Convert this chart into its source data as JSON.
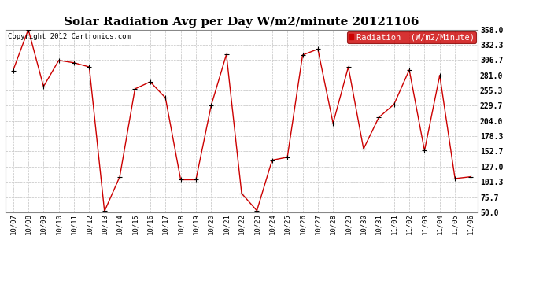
{
  "title": "Solar Radiation Avg per Day W/m2/minute 20121106",
  "copyright": "Copyright 2012 Cartronics.com",
  "legend_label": "Radiation  (W/m2/Minute)",
  "dates": [
    "10/07",
    "10/08",
    "10/09",
    "10/10",
    "10/11",
    "10/12",
    "10/13",
    "10/14",
    "10/15",
    "10/16",
    "10/17",
    "10/18",
    "10/19",
    "10/20",
    "10/21",
    "10/22",
    "10/23",
    "10/24",
    "10/25",
    "10/26",
    "10/27",
    "10/28",
    "10/29",
    "10/30",
    "10/31",
    "11/01",
    "11/02",
    "11/03",
    "11/04",
    "11/05",
    "11/06"
  ],
  "values": [
    289,
    358,
    262,
    306,
    302,
    295,
    52,
    110,
    258,
    270,
    243,
    105,
    105,
    230,
    316,
    82,
    53,
    138,
    143,
    315,
    325,
    200,
    295,
    157,
    210,
    232,
    290,
    154,
    281,
    107,
    110
  ],
  "line_color": "#cc0000",
  "marker_color": "#000000",
  "background_color": "#ffffff",
  "grid_color": "#bbbbbb",
  "ylim": [
    50.0,
    358.0
  ],
  "yticks": [
    50.0,
    75.7,
    101.3,
    127.0,
    152.7,
    178.3,
    204.0,
    229.7,
    255.3,
    281.0,
    306.7,
    332.3,
    358.0
  ],
  "ytick_labels": [
    "50.0",
    "75.7",
    "101.3",
    "127.0",
    "152.7",
    "178.3",
    "204.0",
    "229.7",
    "255.3",
    "281.0",
    "306.7",
    "332.3",
    "358.0"
  ],
  "title_fontsize": 11,
  "legend_bg": "#cc0000",
  "legend_text_color": "#ffffff",
  "legend_fontsize": 7.5
}
